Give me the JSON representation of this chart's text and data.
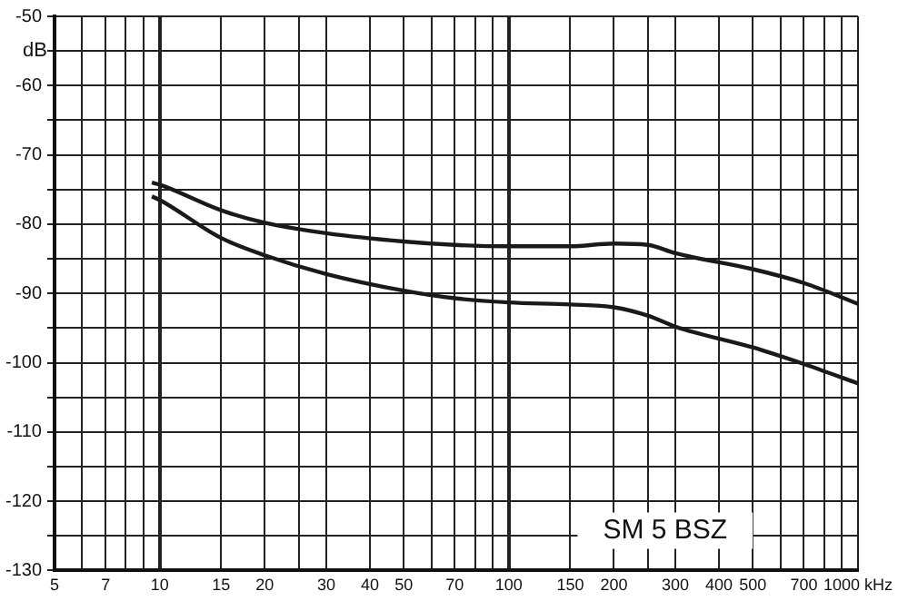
{
  "chart_data": {
    "type": "line",
    "ylabel": "dB",
    "log": "x",
    "grid": true,
    "marker": "none",
    "line_style": "solid",
    "legend": false,
    "xlim": [
      5,
      1000
    ],
    "ylim": [
      -130,
      -50
    ],
    "xticks": [
      5,
      {
        "value": 6,
        "label": null
      },
      7,
      {
        "value": 8,
        "label": null
      },
      {
        "value": 9,
        "label": null
      },
      10,
      15,
      20,
      {
        "value": 25,
        "label": null
      },
      30,
      40,
      50,
      {
        "value": 60,
        "label": null
      },
      70,
      {
        "value": 80,
        "label": null
      },
      {
        "value": 90,
        "label": null
      },
      100,
      150,
      200,
      {
        "value": 250,
        "label": null
      },
      300,
      400,
      500,
      {
        "value": 600,
        "label": null
      },
      700,
      {
        "value": 800,
        "label": null
      },
      {
        "value": 900,
        "label": null
      },
      {
        "value": 1000,
        "label": "1000 kHz"
      }
    ],
    "yticks": [
      -130,
      {
        "value": -125,
        "label": null
      },
      -120,
      {
        "value": -115,
        "label": null
      },
      -110,
      {
        "value": -105,
        "label": null
      },
      -100,
      {
        "value": -95,
        "label": null
      },
      -90,
      {
        "value": -85,
        "label": null
      },
      -80,
      {
        "value": -75,
        "label": null
      },
      -70,
      {
        "value": -65,
        "label": null
      },
      -60,
      {
        "value": -55,
        "label": null
      },
      -50
    ],
    "x": [
      9.5,
      10,
      15,
      20,
      30,
      50,
      70,
      100,
      150,
      200,
      250,
      300,
      500,
      700,
      1000
    ],
    "series": [
      {
        "color": "#1a1a1a",
        "values": [
          -74,
          -74.3,
          -78,
          -79.8,
          -81.3,
          -82.5,
          -83,
          -83.2,
          -83.2,
          -82.8,
          -83,
          -84.2,
          -86.5,
          -88.5,
          -91.5
        ]
      },
      {
        "color": "#1a1a1a",
        "values": [
          -76,
          -76.5,
          -82,
          -84.5,
          -87.2,
          -89.6,
          -90.7,
          -91.3,
          -91.6,
          -92,
          -93.2,
          -94.8,
          -97.8,
          -100.2,
          -103
        ]
      }
    ],
    "annotations": [
      "SM 5 BSZ"
    ]
  }
}
